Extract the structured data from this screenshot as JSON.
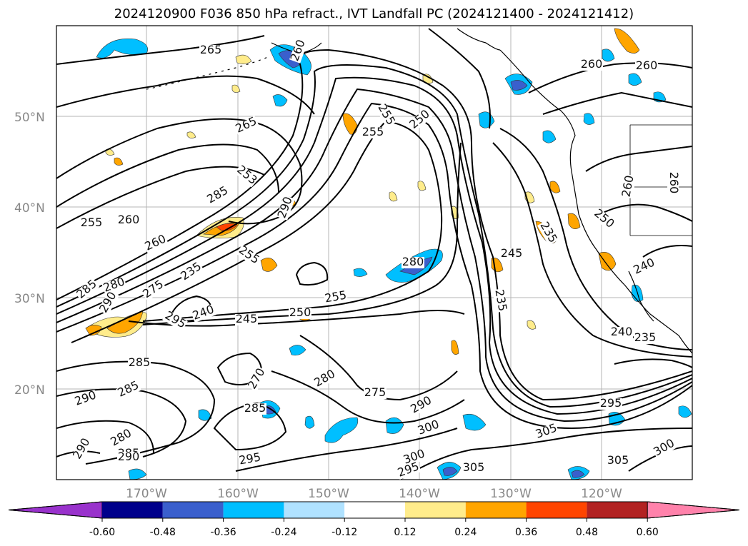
{
  "title": "2024120900 F036 850 hPa refract., IVT Landfall PC (2024121400 - 2024121412)",
  "lat_labels": [
    "50°N",
    "40°N",
    "30°N",
    "20°N"
  ],
  "lon_labels": [
    "170°W",
    "160°W",
    "150°W",
    "140°W",
    "130°W",
    "120°W"
  ],
  "contour_labels": [
    "265",
    "260",
    "255",
    "250",
    "255",
    "260",
    "260",
    "265",
    "255",
    "260",
    "285",
    "253",
    "290",
    "260",
    "255",
    "235",
    "275",
    "280",
    "285",
    "290",
    "295",
    "240",
    "245",
    "250",
    "255",
    "280",
    "245",
    "235",
    "240",
    "235",
    "240",
    "285",
    "285",
    "290",
    "270",
    "280",
    "275",
    "285",
    "295",
    "290",
    "280",
    "285",
    "290",
    "290",
    "300",
    "300",
    "295",
    "305",
    "305",
    "295",
    "300",
    "305",
    "260",
    "260",
    "250",
    "235"
  ],
  "colorbar": {
    "tick_labels": [
      "-0.60",
      "-0.48",
      "-0.36",
      "-0.24",
      "-0.12",
      "0.12",
      "0.24",
      "0.36",
      "0.48",
      "0.60"
    ],
    "colors": [
      "#9932cc",
      "#00008b",
      "#3a5fcd",
      "#00bfff",
      "#b0e2ff",
      "#ffffff",
      "#ffec8b",
      "#ffa500",
      "#ff4500",
      "#b22222",
      "#ff82ab"
    ]
  }
}
